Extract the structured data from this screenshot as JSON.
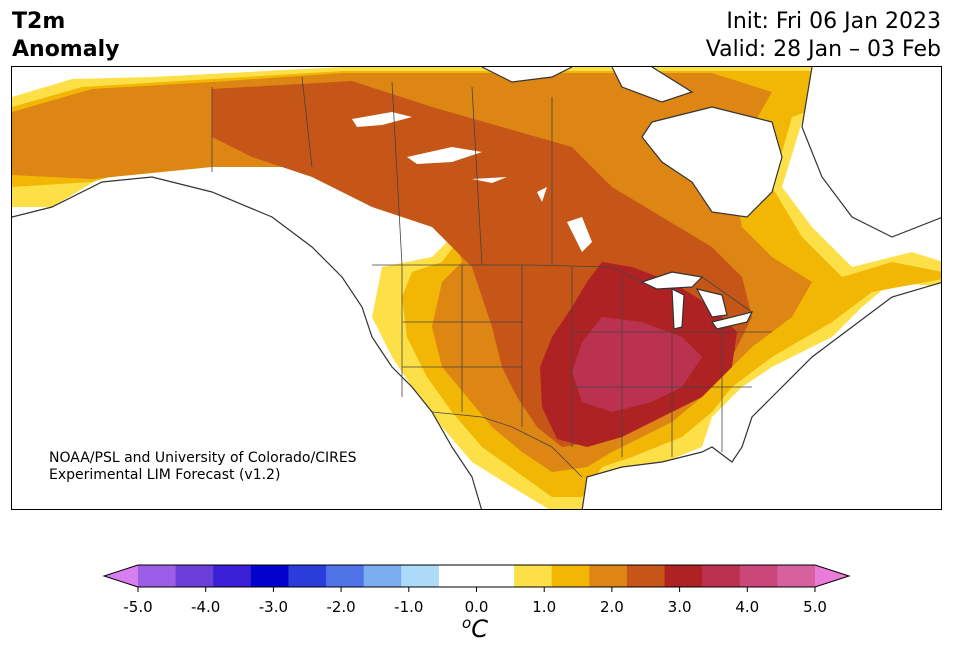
{
  "header": {
    "title_line1": "T2m",
    "title_line2": "Anomaly",
    "init": "Init: Fri 06 Jan 2023",
    "valid": "Valid: 28 Jan – 03 Feb"
  },
  "credit": {
    "line1": "NOAA/PSL and University of Colorado/CIRES",
    "line2": "Experimental LIM Forecast (v1.2)"
  },
  "colorbar": {
    "ticks": [
      "-5.0",
      "-4.0",
      "-3.0",
      "-2.0",
      "-1.0",
      "0.0",
      "1.0",
      "2.0",
      "3.0",
      "4.0",
      "5.0"
    ],
    "units_base": "C",
    "units_sup": "o",
    "colors": [
      "#d87ef0",
      "#9b5ee6",
      "#6a3ed9",
      "#3a1fd6",
      "#0202cc",
      "#2a3ddb",
      "#4f73e6",
      "#7aaef0",
      "#acdaf7",
      "#ffffff",
      "#ffffff",
      "#fde047",
      "#f2b705",
      "#dd8613",
      "#c55617",
      "#af2223",
      "#bb3150",
      "#cb4679",
      "#d7619f",
      "#e97cd8"
    ]
  },
  "map": {
    "region": "North America",
    "colors": {
      "ocean": "#ffffff",
      "anom_1": "#fde047",
      "anom_1_5": "#f2b705",
      "anom_2": "#dd8613",
      "anom_2_5": "#c55617",
      "anom_3": "#af2223",
      "anom_3_5": "#bb3150",
      "cold_small": "#acdaf7",
      "coast": "#333333"
    }
  }
}
